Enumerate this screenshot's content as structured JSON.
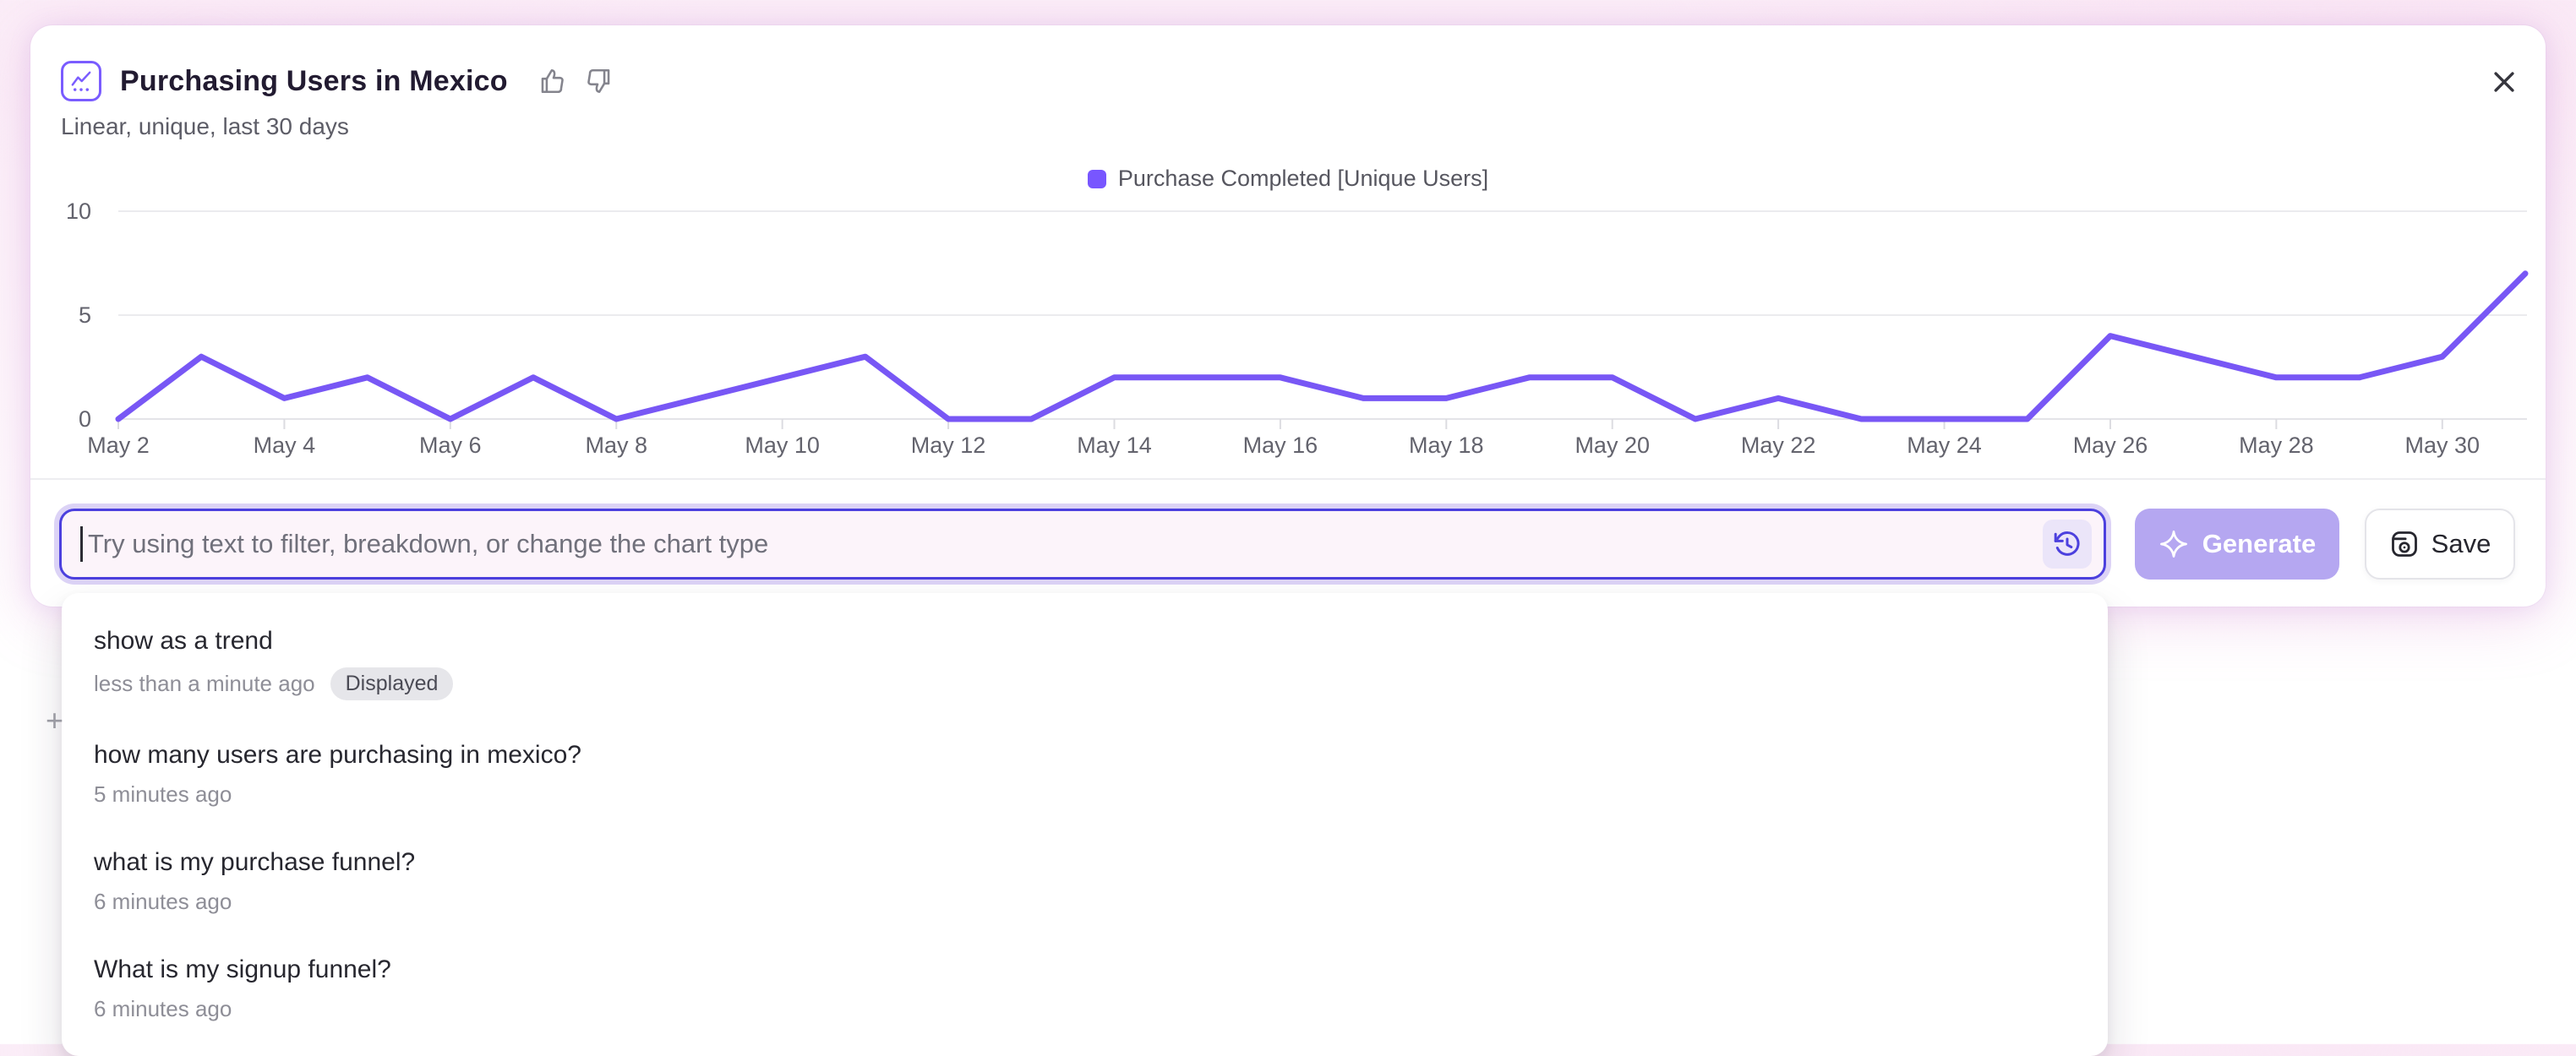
{
  "header": {
    "title": "Purchasing Users in Mexico",
    "subtitle": "Linear, unique, last 30 days"
  },
  "icons": {
    "header_badge": "line-chart-icon",
    "feedback": [
      "thumbs-up-icon",
      "thumbs-down-icon"
    ],
    "close": "close-icon",
    "input_right": "history-icon",
    "generate": "sparkle-icon",
    "save": "save-icon"
  },
  "chart_data": {
    "type": "line",
    "title": "Purchasing Users in Mexico",
    "categories": [
      "May 2",
      "May 3",
      "May 4",
      "May 5",
      "May 6",
      "May 7",
      "May 8",
      "May 9",
      "May 10",
      "May 11",
      "May 12",
      "May 13",
      "May 14",
      "May 15",
      "May 16",
      "May 17",
      "May 18",
      "May 19",
      "May 20",
      "May 21",
      "May 22",
      "May 23",
      "May 24",
      "May 25",
      "May 26",
      "May 27",
      "May 28",
      "May 29",
      "May 30",
      "May 31"
    ],
    "series": [
      {
        "name": "Purchase Completed [Unique Users]",
        "color": "#7857F5",
        "values": [
          0,
          3,
          1,
          2,
          0,
          2,
          0,
          1,
          2,
          3,
          0,
          0,
          2,
          2,
          2,
          1,
          1,
          2,
          2,
          0,
          1,
          0,
          0,
          0,
          4,
          3,
          2,
          2,
          3,
          7
        ]
      }
    ],
    "xlabel": "",
    "ylabel": "",
    "ylim": [
      0,
      10
    ],
    "yticks": [
      0,
      5,
      10
    ],
    "x_tick_every": 2,
    "grid": "horizontal",
    "legend_position": "top-center"
  },
  "query_bar": {
    "value": "",
    "placeholder": "Try using text to filter, breakdown, or change the chart type",
    "generate_label": "Generate",
    "save_label": "Save"
  },
  "history_dropdown": {
    "items": [
      {
        "query": "show as a trend",
        "time": "less than a minute ago",
        "badge": "Displayed"
      },
      {
        "query": "how many users are purchasing in mexico?",
        "time": "5 minutes ago"
      },
      {
        "query": "what is my purchase funnel?",
        "time": "6 minutes ago"
      },
      {
        "query": "What is my signup funnel?",
        "time": "6 minutes ago"
      }
    ]
  },
  "misc": {
    "plus_mark": "+"
  },
  "colors": {
    "accent": "#4C40DE",
    "series": "#7857F5",
    "legend_swatch": "#7856FF",
    "generate_bg": "#B5A7F1",
    "input_bg": "#FCF4FA"
  }
}
